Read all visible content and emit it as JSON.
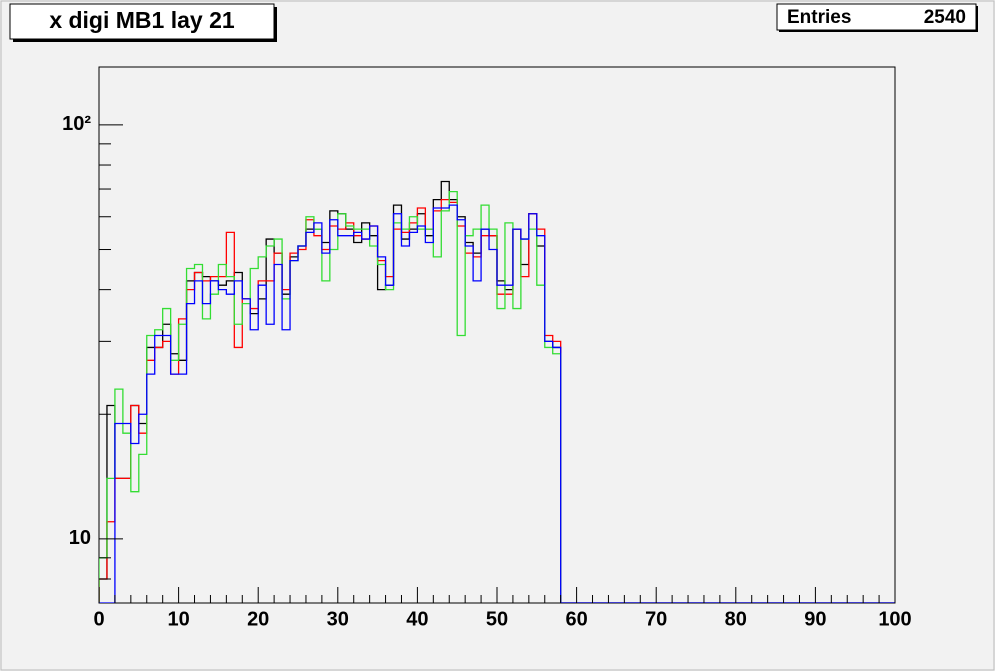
{
  "chart_data": {
    "type": "histogram",
    "title": "x digi MB1 lay 21",
    "stats": {
      "label": "Entries",
      "value": 2540
    },
    "log_y": true,
    "xlim": [
      0,
      100
    ],
    "ylim": [
      7,
      138
    ],
    "xticks": [
      0,
      10,
      20,
      30,
      40,
      50,
      60,
      70,
      80,
      90,
      100
    ],
    "xminorticks": [
      2,
      4,
      6,
      8,
      12,
      14,
      16,
      18,
      22,
      24,
      26,
      28,
      32,
      34,
      36,
      38,
      42,
      44,
      46,
      48,
      52,
      54,
      56,
      58,
      62,
      64,
      66,
      68,
      72,
      74,
      76,
      78,
      82,
      84,
      86,
      88,
      92,
      94,
      96,
      98
    ],
    "yticks": [
      10,
      {
        "value": 100,
        "label": "10²"
      }
    ],
    "yminorticks": [
      8,
      9,
      20,
      30,
      40,
      50,
      60,
      70,
      80,
      90
    ],
    "bins": [
      0,
      1,
      2,
      3,
      4,
      5,
      6,
      7,
      8,
      9,
      10,
      11,
      12,
      13,
      14,
      15,
      16,
      17,
      18,
      19,
      20,
      21,
      22,
      23,
      24,
      25,
      26,
      27,
      28,
      29,
      30,
      31,
      32,
      33,
      34,
      35,
      36,
      37,
      38,
      39,
      40,
      41,
      42,
      43,
      44,
      45,
      46,
      47,
      48,
      49,
      50,
      51,
      52,
      53,
      54,
      55,
      56,
      57,
      58,
      59,
      60,
      61,
      62,
      63,
      64,
      65,
      66,
      67,
      68,
      69,
      70,
      71,
      72,
      73,
      74,
      75,
      76,
      77,
      78,
      79,
      80,
      81,
      82,
      83,
      84,
      85,
      86,
      87,
      88,
      89,
      90,
      91,
      92,
      93,
      94,
      95,
      96,
      97,
      98,
      99,
      100
    ],
    "series": [
      {
        "color": "#000000",
        "values": [
          8,
          21,
          14,
          14,
          21,
          19,
          29,
          29,
          33,
          28,
          27,
          42,
          44,
          43,
          42,
          41,
          42,
          44,
          38,
          35,
          38,
          53,
          49,
          39,
          48,
          51,
          56,
          56,
          52,
          62,
          61,
          56,
          52,
          58,
          54,
          40,
          41,
          64,
          53,
          56,
          61,
          54,
          66,
          73,
          66,
          60,
          52,
          49,
          56,
          54,
          42,
          40,
          56,
          46,
          61,
          51,
          30,
          29,
          0,
          0,
          0,
          0,
          0,
          0,
          0,
          0,
          0,
          0,
          0,
          0,
          0,
          0,
          0,
          0,
          0,
          0,
          0,
          0,
          0,
          0,
          0,
          0,
          0,
          0,
          0,
          0,
          0,
          0,
          0,
          0,
          0,
          0,
          0,
          0,
          0,
          0,
          0,
          0,
          0,
          0
        ]
      },
      {
        "color": "#ff0000",
        "values": [
          8,
          11,
          14,
          14,
          21,
          18,
          27,
          29,
          30,
          25,
          34,
          40,
          44,
          42,
          43,
          43,
          55,
          29,
          38,
          36,
          42,
          42,
          49,
          40,
          49,
          50,
          59,
          54,
          50,
          57,
          56,
          58,
          54,
          53,
          57,
          47,
          43,
          56,
          55,
          58,
          63,
          56,
          62,
          66,
          65,
          57,
          49,
          48,
          54,
          54,
          39,
          39,
          56,
          43,
          61,
          56,
          31,
          30,
          0,
          0,
          0,
          0,
          0,
          0,
          0,
          0,
          0,
          0,
          0,
          0,
          0,
          0,
          0,
          0,
          0,
          0,
          0,
          0,
          0,
          0,
          0,
          0,
          0,
          0,
          0,
          0,
          0,
          0,
          0,
          0,
          0,
          0,
          0,
          0,
          0,
          0,
          0,
          0,
          0,
          0
        ]
      },
      {
        "color": "#33dd33",
        "values": [
          9,
          14,
          23,
          18,
          13,
          16,
          31,
          32,
          36,
          27,
          33,
          45,
          46,
          34,
          39,
          46,
          43,
          33,
          37,
          45,
          48,
          51,
          53,
          38,
          47,
          51,
          60,
          56,
          42,
          50,
          61,
          57,
          56,
          56,
          51,
          46,
          40,
          58,
          56,
          60,
          56,
          56,
          48,
          62,
          69,
          31,
          54,
          56,
          64,
          56,
          36,
          58,
          36,
          53,
          56,
          41,
          29,
          28,
          0,
          0,
          0,
          0,
          0,
          0,
          0,
          0,
          0,
          0,
          0,
          0,
          0,
          0,
          0,
          0,
          0,
          0,
          0,
          0,
          0,
          0,
          0,
          0,
          0,
          0,
          0,
          0,
          0,
          0,
          0,
          0,
          0,
          0,
          0,
          0,
          0,
          0,
          0,
          0,
          0,
          0
        ]
      },
      {
        "color": "#0000ff",
        "values": [
          0,
          0,
          19,
          19,
          17,
          20,
          25,
          31,
          31,
          25,
          25,
          37,
          42,
          37,
          42,
          40,
          39,
          42,
          38,
          32,
          41,
          33,
          46,
          32,
          47,
          51,
          55,
          58,
          49,
          59,
          54,
          54,
          55,
          53,
          57,
          48,
          41,
          61,
          51,
          55,
          57,
          52,
          63,
          63,
          64,
          59,
          51,
          42,
          56,
          50,
          41,
          41,
          56,
          53,
          61,
          54,
          30,
          29,
          0,
          0,
          0,
          0,
          0,
          0,
          0,
          0,
          0,
          0,
          0,
          0,
          0,
          0,
          0,
          0,
          0,
          0,
          0,
          0,
          0,
          0,
          0,
          0,
          0,
          0,
          0,
          0,
          0,
          0,
          0,
          0,
          0,
          0,
          0,
          0,
          0,
          0,
          0,
          0,
          0,
          0
        ]
      }
    ]
  }
}
